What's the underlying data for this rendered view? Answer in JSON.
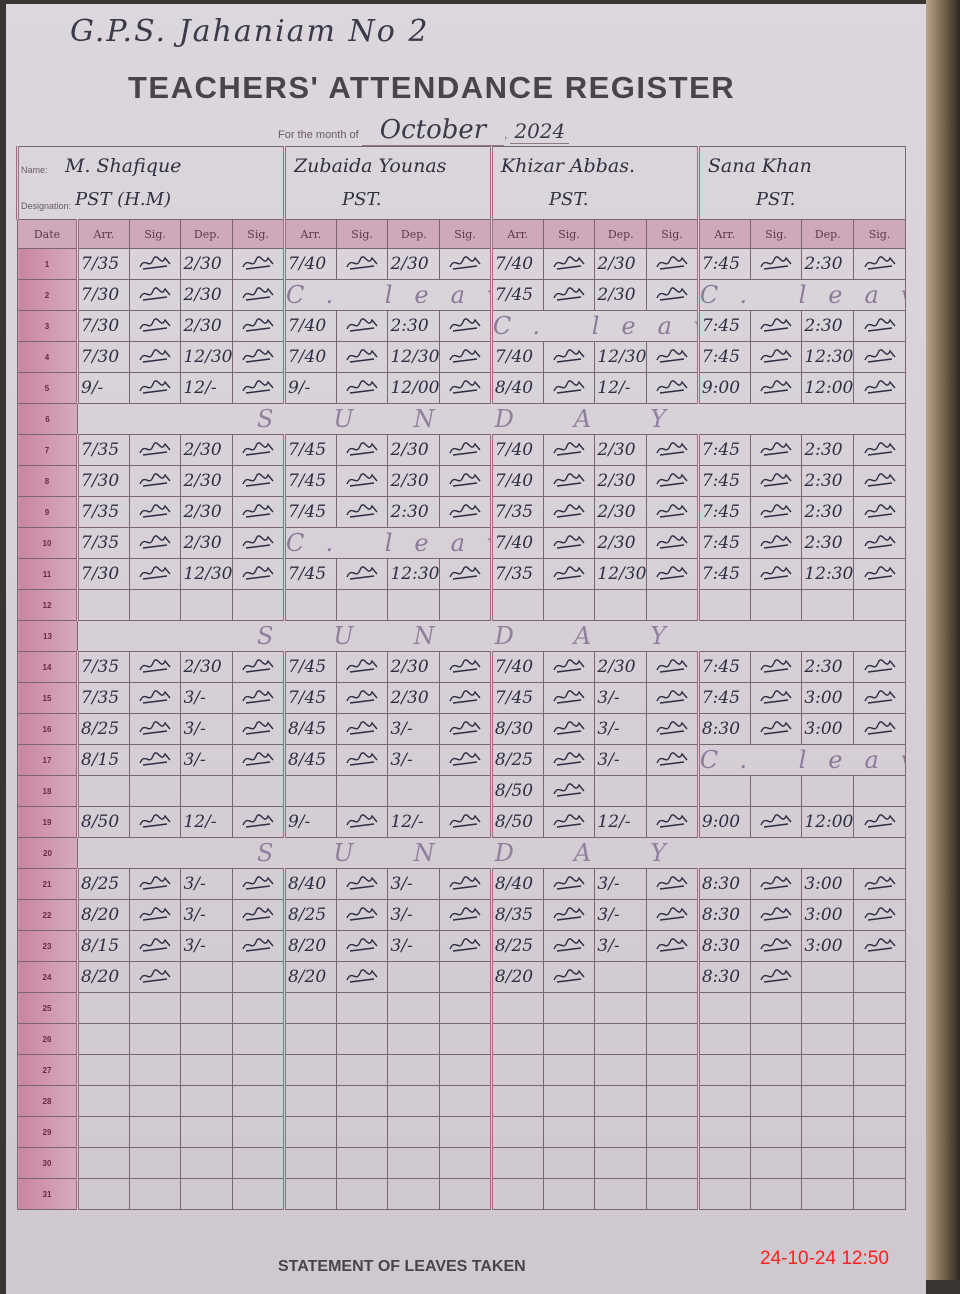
{
  "school": "G.P.S. Jahaniam No 2",
  "title": "TEACHERS' ATTENDANCE REGISTER",
  "month_label": "For the month of",
  "month": "October",
  "year": "2024",
  "name_label": "Name:",
  "designation_label": "Designation:",
  "date_header": "Date",
  "col_headers": [
    "Arr.",
    "Sig.",
    "Dep.",
    "Sig."
  ],
  "teachers": [
    {
      "name": "M. Shafique",
      "designation": "PST (H.M)"
    },
    {
      "name": "Zubaida Younas",
      "designation": "PST."
    },
    {
      "name": "Khizar Abbas.",
      "designation": "PST."
    },
    {
      "name": "Sana Khan",
      "designation": "PST."
    }
  ],
  "sunday_text": "SUNDAY",
  "leave_text": "C. leave",
  "rows": [
    {
      "date": "1",
      "t": [
        [
          "7/35",
          "2/30"
        ],
        [
          "7/40",
          "2/30"
        ],
        [
          "7/40",
          "2/30"
        ],
        [
          "7:45",
          "2:30"
        ]
      ]
    },
    {
      "date": "2",
      "t": [
        [
          "7/30",
          "2/30"
        ],
        "leave",
        [
          "7/45",
          "2/30"
        ],
        "leave"
      ]
    },
    {
      "date": "3",
      "t": [
        [
          "7/30",
          "2/30"
        ],
        [
          "7/40",
          "2:30"
        ],
        "leave",
        [
          "7:45",
          "2:30"
        ]
      ]
    },
    {
      "date": "4",
      "t": [
        [
          "7/30",
          "12/30"
        ],
        [
          "7/40",
          "12/30"
        ],
        [
          "7/40",
          "12/30"
        ],
        [
          "7:45",
          "12:30"
        ]
      ]
    },
    {
      "date": "5",
      "t": [
        [
          "9/-",
          "12/-"
        ],
        [
          "9/-",
          "12/00"
        ],
        [
          "8/40",
          "12/-"
        ],
        [
          "9:00",
          "12:00"
        ]
      ]
    },
    {
      "date": "6",
      "sunday": true
    },
    {
      "date": "7",
      "t": [
        [
          "7/35",
          "2/30"
        ],
        [
          "7/45",
          "2/30"
        ],
        [
          "7/40",
          "2/30"
        ],
        [
          "7:45",
          "2:30"
        ]
      ]
    },
    {
      "date": "8",
      "t": [
        [
          "7/30",
          "2/30"
        ],
        [
          "7/45",
          "2/30"
        ],
        [
          "7/40",
          "2/30"
        ],
        [
          "7:45",
          "2:30"
        ]
      ]
    },
    {
      "date": "9",
      "t": [
        [
          "7/35",
          "2/30"
        ],
        [
          "7/45",
          "2:30"
        ],
        [
          "7/35",
          "2/30"
        ],
        [
          "7:45",
          "2:30"
        ]
      ]
    },
    {
      "date": "10",
      "t": [
        [
          "7/35",
          "2/30"
        ],
        "leave",
        [
          "7/40",
          "2/30"
        ],
        [
          "7:45",
          "2:30"
        ]
      ]
    },
    {
      "date": "11",
      "t": [
        [
          "7/30",
          "12/30"
        ],
        [
          "7/45",
          "12:30"
        ],
        [
          "7/35",
          "12/30"
        ],
        [
          "7:45",
          "12:30"
        ]
      ]
    },
    {
      "date": "12",
      "t": [
        null,
        null,
        null,
        null
      ]
    },
    {
      "date": "13",
      "sunday": true
    },
    {
      "date": "14",
      "t": [
        [
          "7/35",
          "2/30"
        ],
        [
          "7/45",
          "2/30"
        ],
        [
          "7/40",
          "2/30"
        ],
        [
          "7:45",
          "2:30"
        ]
      ]
    },
    {
      "date": "15",
      "t": [
        [
          "7/35",
          "3/-"
        ],
        [
          "7/45",
          "2/30"
        ],
        [
          "7/45",
          "3/-"
        ],
        [
          "7:45",
          "3:00"
        ]
      ]
    },
    {
      "date": "16",
      "t": [
        [
          "8/25",
          "3/-"
        ],
        [
          "8/45",
          "3/-"
        ],
        [
          "8/30",
          "3/-"
        ],
        [
          "8:30",
          "3:00"
        ]
      ]
    },
    {
      "date": "17",
      "t": [
        [
          "8/15",
          "3/-"
        ],
        [
          "8/45",
          "3/-"
        ],
        [
          "8/25",
          "3/-"
        ],
        "leave"
      ]
    },
    {
      "date": "18",
      "t": [
        null,
        null,
        [
          "8/50",
          ""
        ],
        null
      ]
    },
    {
      "date": "19",
      "t": [
        [
          "8/50",
          "12/-"
        ],
        [
          "9/-",
          "12/-"
        ],
        [
          "8/50",
          "12/-"
        ],
        [
          "9:00",
          "12:00"
        ]
      ]
    },
    {
      "date": "20",
      "sunday": true
    },
    {
      "date": "21",
      "t": [
        [
          "8/25",
          "3/-"
        ],
        [
          "8/40",
          "3/-"
        ],
        [
          "8/40",
          "3/-"
        ],
        [
          "8:30",
          "3:00"
        ]
      ]
    },
    {
      "date": "22",
      "t": [
        [
          "8/20",
          "3/-"
        ],
        [
          "8/25",
          "3/-"
        ],
        [
          "8/35",
          "3/-"
        ],
        [
          "8:30",
          "3:00"
        ]
      ]
    },
    {
      "date": "23",
      "t": [
        [
          "8/15",
          "3/-"
        ],
        [
          "8/20",
          "3/-"
        ],
        [
          "8/25",
          "3/-"
        ],
        [
          "8:30",
          "3:00"
        ]
      ]
    },
    {
      "date": "24",
      "t": [
        [
          "8/20",
          ""
        ],
        [
          "8/20",
          ""
        ],
        [
          "8/20",
          ""
        ],
        [
          "8:30",
          ""
        ]
      ]
    },
    {
      "date": "25"
    },
    {
      "date": "26"
    },
    {
      "date": "27"
    },
    {
      "date": "28"
    },
    {
      "date": "29"
    },
    {
      "date": "30"
    },
    {
      "date": "31"
    }
  ],
  "footer_heading": "STATEMENT OF LEAVES TAKEN",
  "camera_timestamp": "24-10-24  12:50",
  "colors": {
    "ink": "#2c2e44",
    "date_column": "#c8869f",
    "timestamp": "#ff2020"
  }
}
